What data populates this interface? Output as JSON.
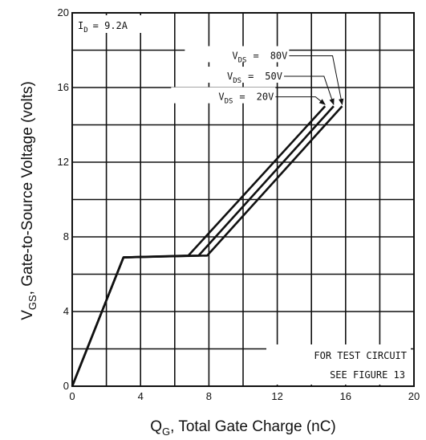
{
  "chart_data": {
    "type": "line",
    "condition": {
      "symbol": "I",
      "sub": "D",
      "value": "= 9.2A"
    },
    "xlabel": {
      "main": "Q",
      "sub": "G",
      "rest": ", Total Gate Charge (nC)"
    },
    "ylabel": {
      "main": "V",
      "sub": "GS",
      "rest": ", Gate-to-Source Voltage (volts)"
    },
    "xlim": [
      0,
      20
    ],
    "ylim": [
      0,
      20
    ],
    "xticks": [
      "0",
      "4",
      "8",
      "12",
      "16",
      "20"
    ],
    "yticks": [
      "0",
      "4",
      "8",
      "12",
      "16",
      "20"
    ],
    "x_gridlines": [
      0,
      2,
      4,
      6,
      8,
      10,
      12,
      14,
      16,
      18,
      20
    ],
    "y_gridlines": [
      0,
      2,
      4,
      6,
      8,
      10,
      12,
      14,
      16,
      18,
      20
    ],
    "series": [
      {
        "name": "80V",
        "x": [
          0,
          3.0,
          7.9,
          15.8
        ],
        "y": [
          0,
          6.9,
          7.0,
          15.0
        ]
      },
      {
        "name": "50V",
        "x": [
          0,
          3.0,
          7.4,
          15.3
        ],
        "y": [
          0,
          6.9,
          7.0,
          15.0
        ]
      },
      {
        "name": "20V",
        "x": [
          0,
          3.0,
          6.8,
          14.8
        ],
        "y": [
          0,
          6.9,
          7.0,
          15.0
        ]
      }
    ],
    "legend": [
      {
        "prefix": "V",
        "sub": "DS",
        "eq": "=",
        "value": "80V",
        "anchor_x": 12.6,
        "anchor_y": 17.7,
        "target_x": 15.8,
        "target_y": 15.0
      },
      {
        "prefix": "V",
        "sub": "DS",
        "eq": "=",
        "value": "50V",
        "anchor_x": 12.3,
        "anchor_y": 16.6,
        "target_x": 15.3,
        "target_y": 15.0
      },
      {
        "prefix": "V",
        "sub": "DS",
        "eq": "=",
        "value": "20V",
        "anchor_x": 11.8,
        "anchor_y": 15.5,
        "target_x": 14.8,
        "target_y": 15.0
      }
    ],
    "note": [
      "FOR TEST CIRCUIT",
      "SEE FIGURE 13"
    ],
    "grid": true
  }
}
